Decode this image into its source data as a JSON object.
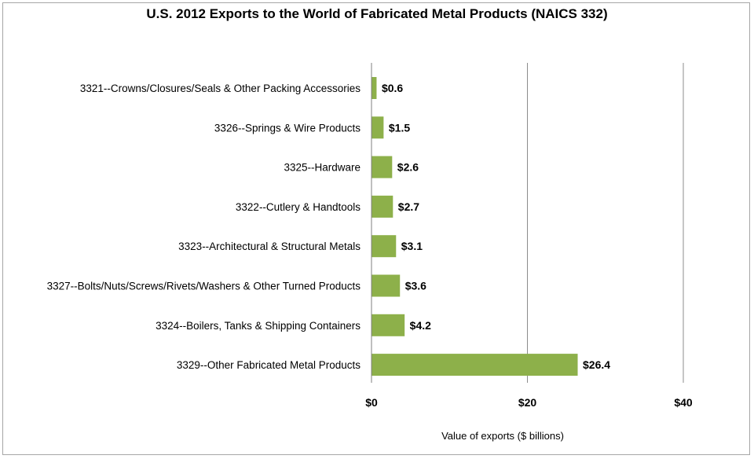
{
  "chart_data": {
    "type": "bar",
    "orientation": "horizontal",
    "title": "U.S. 2012 Exports to the World of Fabricated Metal Products (NAICS 332)",
    "xlabel": "Value of exports ($ billions)",
    "ylabel": "",
    "xlim": [
      0,
      40
    ],
    "ticks": [
      0,
      20,
      40
    ],
    "tick_labels": [
      "$0",
      "$20",
      "$40"
    ],
    "grid": "vertical",
    "bar_color": "#8db04a",
    "categories": [
      "3321--Crowns/Closures/Seals & Other Packing Accessories",
      "3326--Springs & Wire Products",
      "3325--Hardware",
      "3322--Cutlery & Handtools",
      "3323--Architectural & Structural Metals",
      "3327--Bolts/Nuts/Screws/Rivets/Washers & Other Turned Products",
      "3324--Boilers, Tanks & Shipping Containers",
      "3329--Other Fabricated Metal Products"
    ],
    "values": [
      0.6,
      1.5,
      2.6,
      2.7,
      3.1,
      3.6,
      4.2,
      26.4
    ],
    "value_labels": [
      "$0.6",
      "$1.5",
      "$2.6",
      "$2.7",
      "$3.1",
      "$3.6",
      "$4.2",
      "$26.4"
    ]
  }
}
